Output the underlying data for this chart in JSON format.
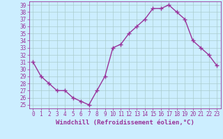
{
  "x": [
    0,
    1,
    2,
    3,
    4,
    5,
    6,
    7,
    8,
    9,
    10,
    11,
    12,
    13,
    14,
    15,
    16,
    17,
    18,
    19,
    20,
    21,
    22,
    23
  ],
  "y": [
    31,
    29,
    28,
    27,
    27,
    26,
    25.5,
    25,
    27,
    29,
    33,
    33.5,
    35,
    36,
    37,
    38.5,
    38.5,
    39,
    38,
    37,
    34,
    33,
    32,
    30.5
  ],
  "line_color": "#993399",
  "marker": "+",
  "marker_size": 4,
  "bg_color": "#cceeff",
  "grid_color": "#aacccc",
  "xlabel": "Windchill (Refroidissement éolien,°C)",
  "xlim": [
    -0.5,
    23.5
  ],
  "ylim": [
    24.5,
    39.5
  ],
  "yticks": [
    25,
    26,
    27,
    28,
    29,
    30,
    31,
    32,
    33,
    34,
    35,
    36,
    37,
    38,
    39
  ],
  "xticks": [
    0,
    1,
    2,
    3,
    4,
    5,
    6,
    7,
    8,
    9,
    10,
    11,
    12,
    13,
    14,
    15,
    16,
    17,
    18,
    19,
    20,
    21,
    22,
    23
  ],
  "tick_color": "#993399",
  "label_color": "#993399",
  "spine_color": "#993399",
  "font_size": 5.5,
  "xlabel_fontsize": 6.5,
  "linewidth": 1.0,
  "marker_color": "#993399"
}
